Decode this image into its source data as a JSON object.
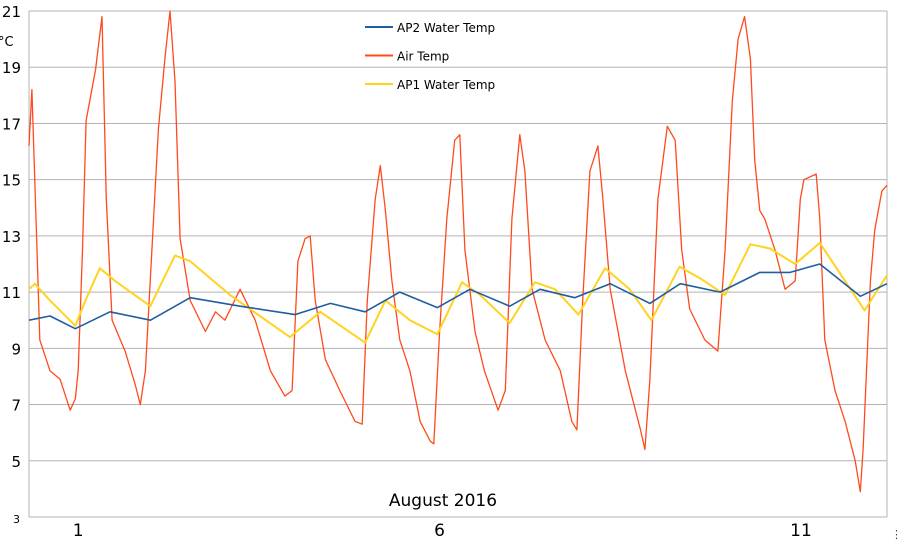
{
  "chart_data": {
    "type": "line",
    "title": "",
    "xlabel": "August 2016",
    "ylabel": "°C",
    "xlim": [
      0.32,
      12.19
    ],
    "ylim": [
      3,
      21
    ],
    "yticks": [
      3,
      5,
      7,
      9,
      11,
      13,
      15,
      17,
      19,
      21
    ],
    "xticks": [
      1,
      6,
      11
    ],
    "grid": true,
    "legend_position": "top-center",
    "series": [
      {
        "name": "AP2 Water Temp",
        "color": "#1f5f9f",
        "points": [
          [
            0.32,
            10.0
          ],
          [
            0.61,
            10.15
          ],
          [
            0.96,
            9.7
          ],
          [
            1.44,
            10.3
          ],
          [
            2.0,
            10.0
          ],
          [
            2.55,
            10.8
          ],
          [
            3.24,
            10.5
          ],
          [
            4.0,
            10.2
          ],
          [
            4.49,
            10.6
          ],
          [
            4.97,
            10.3
          ],
          [
            5.45,
            11.0
          ],
          [
            5.97,
            10.45
          ],
          [
            6.42,
            11.1
          ],
          [
            6.97,
            10.5
          ],
          [
            7.39,
            11.1
          ],
          [
            7.87,
            10.8
          ],
          [
            8.36,
            11.3
          ],
          [
            8.91,
            10.6
          ],
          [
            9.33,
            11.3
          ],
          [
            9.88,
            11.0
          ],
          [
            10.43,
            11.7
          ],
          [
            10.85,
            11.7
          ],
          [
            11.26,
            12.0
          ],
          [
            11.82,
            10.85
          ],
          [
            12.19,
            11.3
          ]
        ]
      },
      {
        "name": "Air Temp",
        "color": "#ff4a1c",
        "points": [
          [
            0.32,
            16.2
          ],
          [
            0.36,
            18.2
          ],
          [
            0.43,
            12.5
          ],
          [
            0.47,
            9.3
          ],
          [
            0.61,
            8.2
          ],
          [
            0.75,
            7.9
          ],
          [
            0.89,
            6.8
          ],
          [
            0.96,
            7.2
          ],
          [
            1.0,
            8.2
          ],
          [
            1.06,
            12.5
          ],
          [
            1.11,
            17.1
          ],
          [
            1.24,
            18.9
          ],
          [
            1.33,
            20.8
          ],
          [
            1.39,
            14.3
          ],
          [
            1.47,
            10.0
          ],
          [
            1.65,
            8.9
          ],
          [
            1.79,
            7.7
          ],
          [
            1.86,
            7.0
          ],
          [
            1.93,
            8.2
          ],
          [
            2.02,
            12.5
          ],
          [
            2.11,
            16.8
          ],
          [
            2.2,
            19.3
          ],
          [
            2.27,
            21.0
          ],
          [
            2.34,
            18.5
          ],
          [
            2.41,
            12.9
          ],
          [
            2.55,
            10.7
          ],
          [
            2.76,
            9.6
          ],
          [
            2.9,
            10.3
          ],
          [
            3.03,
            10.0
          ],
          [
            3.24,
            11.1
          ],
          [
            3.45,
            10.0
          ],
          [
            3.66,
            8.2
          ],
          [
            3.86,
            7.3
          ],
          [
            3.96,
            7.5
          ],
          [
            4.04,
            12.1
          ],
          [
            4.14,
            12.9
          ],
          [
            4.21,
            13.0
          ],
          [
            4.28,
            10.7
          ],
          [
            4.42,
            8.6
          ],
          [
            4.62,
            7.5
          ],
          [
            4.83,
            6.4
          ],
          [
            4.93,
            6.3
          ],
          [
            5.0,
            10.7
          ],
          [
            5.11,
            14.3
          ],
          [
            5.18,
            15.5
          ],
          [
            5.25,
            13.9
          ],
          [
            5.34,
            11.4
          ],
          [
            5.45,
            9.3
          ],
          [
            5.59,
            8.2
          ],
          [
            5.73,
            6.4
          ],
          [
            5.87,
            5.7
          ],
          [
            5.92,
            5.6
          ],
          [
            6.0,
            9.6
          ],
          [
            6.1,
            13.6
          ],
          [
            6.21,
            16.4
          ],
          [
            6.28,
            16.6
          ],
          [
            6.35,
            12.5
          ],
          [
            6.49,
            9.6
          ],
          [
            6.62,
            8.2
          ],
          [
            6.81,
            6.8
          ],
          [
            6.91,
            7.5
          ],
          [
            7.0,
            13.6
          ],
          [
            7.11,
            16.6
          ],
          [
            7.18,
            15.3
          ],
          [
            7.28,
            11.1
          ],
          [
            7.46,
            9.3
          ],
          [
            7.67,
            8.2
          ],
          [
            7.83,
            6.4
          ],
          [
            7.9,
            6.1
          ],
          [
            7.98,
            10.7
          ],
          [
            8.08,
            15.3
          ],
          [
            8.19,
            16.2
          ],
          [
            8.26,
            14.3
          ],
          [
            8.36,
            11.1
          ],
          [
            8.57,
            8.2
          ],
          [
            8.78,
            6.1
          ],
          [
            8.84,
            5.4
          ],
          [
            8.91,
            7.9
          ],
          [
            9.02,
            14.3
          ],
          [
            9.15,
            16.9
          ],
          [
            9.26,
            16.4
          ],
          [
            9.35,
            12.5
          ],
          [
            9.46,
            10.4
          ],
          [
            9.67,
            9.3
          ],
          [
            9.85,
            8.9
          ],
          [
            9.95,
            12.5
          ],
          [
            10.05,
            17.8
          ],
          [
            10.13,
            20.0
          ],
          [
            10.22,
            20.8
          ],
          [
            10.3,
            19.3
          ],
          [
            10.36,
            15.7
          ],
          [
            10.43,
            13.9
          ],
          [
            10.5,
            13.6
          ],
          [
            10.64,
            12.5
          ],
          [
            10.78,
            11.1
          ],
          [
            10.92,
            11.4
          ],
          [
            10.99,
            14.3
          ],
          [
            11.04,
            15.0
          ],
          [
            11.21,
            15.2
          ],
          [
            11.26,
            13.6
          ],
          [
            11.33,
            9.3
          ],
          [
            11.47,
            7.5
          ],
          [
            11.61,
            6.4
          ],
          [
            11.75,
            5.0
          ],
          [
            11.82,
            3.9
          ],
          [
            11.86,
            5.4
          ],
          [
            11.96,
            11.4
          ],
          [
            12.02,
            13.2
          ],
          [
            12.12,
            14.6
          ],
          [
            12.19,
            14.8
          ]
        ]
      },
      {
        "name": "AP1 Water Temp",
        "color": "#ffd320",
        "points": [
          [
            0.32,
            11.1
          ],
          [
            0.4,
            11.3
          ],
          [
            0.61,
            10.7
          ],
          [
            0.96,
            9.8
          ],
          [
            1.1,
            10.7
          ],
          [
            1.3,
            11.85
          ],
          [
            1.51,
            11.4
          ],
          [
            2.0,
            10.5
          ],
          [
            2.13,
            11.2
          ],
          [
            2.34,
            12.3
          ],
          [
            2.55,
            12.1
          ],
          [
            3.1,
            10.9
          ],
          [
            3.93,
            9.4
          ],
          [
            4.35,
            10.3
          ],
          [
            4.97,
            9.2
          ],
          [
            5.25,
            10.7
          ],
          [
            5.59,
            10.0
          ],
          [
            5.97,
            9.5
          ],
          [
            6.31,
            11.35
          ],
          [
            6.56,
            10.9
          ],
          [
            6.97,
            9.9
          ],
          [
            7.32,
            11.35
          ],
          [
            7.6,
            11.1
          ],
          [
            7.92,
            10.2
          ],
          [
            8.29,
            11.85
          ],
          [
            8.63,
            11.1
          ],
          [
            8.93,
            10.0
          ],
          [
            9.32,
            11.9
          ],
          [
            9.6,
            11.5
          ],
          [
            9.95,
            10.9
          ],
          [
            10.3,
            12.7
          ],
          [
            10.57,
            12.55
          ],
          [
            10.92,
            12.0
          ],
          [
            11.26,
            12.75
          ],
          [
            11.88,
            10.35
          ],
          [
            12.19,
            11.6
          ]
        ]
      }
    ]
  },
  "more_icon": "vertical-ellipsis-icon"
}
